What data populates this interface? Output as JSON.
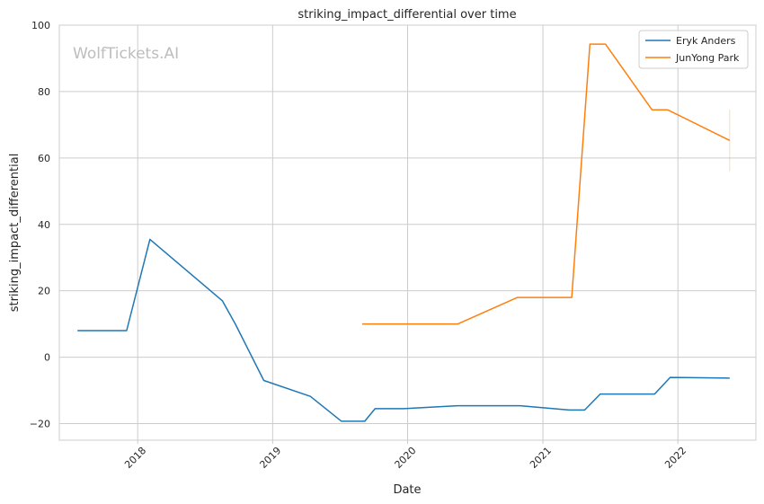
{
  "watermark": "WolfTickets.AI",
  "chart_data": {
    "type": "line",
    "title": "striking_impact_differential over time",
    "xlabel": "Date",
    "ylabel": "striking_impact_differential",
    "xlim": [
      "2017-06-03",
      "2022-07-31"
    ],
    "ylim": [
      -25,
      100
    ],
    "x_ticks": [
      "2018-01-01",
      "2019-01-01",
      "2020-01-01",
      "2021-01-01",
      "2022-01-01"
    ],
    "x_tick_labels": [
      "2018",
      "2019",
      "2020",
      "2021",
      "2022"
    ],
    "y_ticks": [
      -20,
      0,
      20,
      40,
      60,
      80,
      100
    ],
    "y_tick_labels": [
      "−20",
      "0",
      "20",
      "40",
      "60",
      "80",
      "100"
    ],
    "grid": true,
    "legend_position": "top-right",
    "series": [
      {
        "name": "Eryk Anders",
        "color": "#1f77b4",
        "points": [
          [
            "2017-07-22",
            8.0
          ],
          [
            "2017-12-02",
            8.0
          ],
          [
            "2018-02-03",
            35.5
          ],
          [
            "2018-08-18",
            17.0
          ],
          [
            "2018-09-22",
            10.0
          ],
          [
            "2018-12-08",
            -7.0
          ],
          [
            "2019-04-13",
            -11.8
          ],
          [
            "2019-07-06",
            -19.3
          ],
          [
            "2019-09-07",
            -19.3
          ],
          [
            "2019-10-05",
            -15.5
          ],
          [
            "2019-12-21",
            -15.5
          ],
          [
            "2020-05-16",
            -14.6
          ],
          [
            "2020-10-31",
            -14.6
          ],
          [
            "2021-03-13",
            -15.9
          ],
          [
            "2021-04-24",
            -15.9
          ],
          [
            "2021-06-05",
            -11.1
          ],
          [
            "2021-10-30",
            -11.1
          ],
          [
            "2021-12-11",
            -6.1
          ],
          [
            "2022-05-21",
            -6.3
          ]
        ]
      },
      {
        "name": "JunYong Park",
        "color": "#ff7f0e",
        "points": [
          [
            "2019-08-31",
            10.0
          ],
          [
            "2020-05-16",
            10.0
          ],
          [
            "2020-10-24",
            18.0
          ],
          [
            "2021-03-20",
            18.0
          ],
          [
            "2021-05-08",
            94.3
          ],
          [
            "2021-06-19",
            94.3
          ],
          [
            "2021-10-23",
            74.5
          ],
          [
            "2021-12-04",
            74.5
          ],
          [
            "2022-05-21",
            65.3
          ]
        ]
      }
    ],
    "annotations": [
      {
        "series": "JunYong Park",
        "x": "2022-05-21",
        "y_low": 56,
        "y_high": 74.5
      }
    ]
  }
}
